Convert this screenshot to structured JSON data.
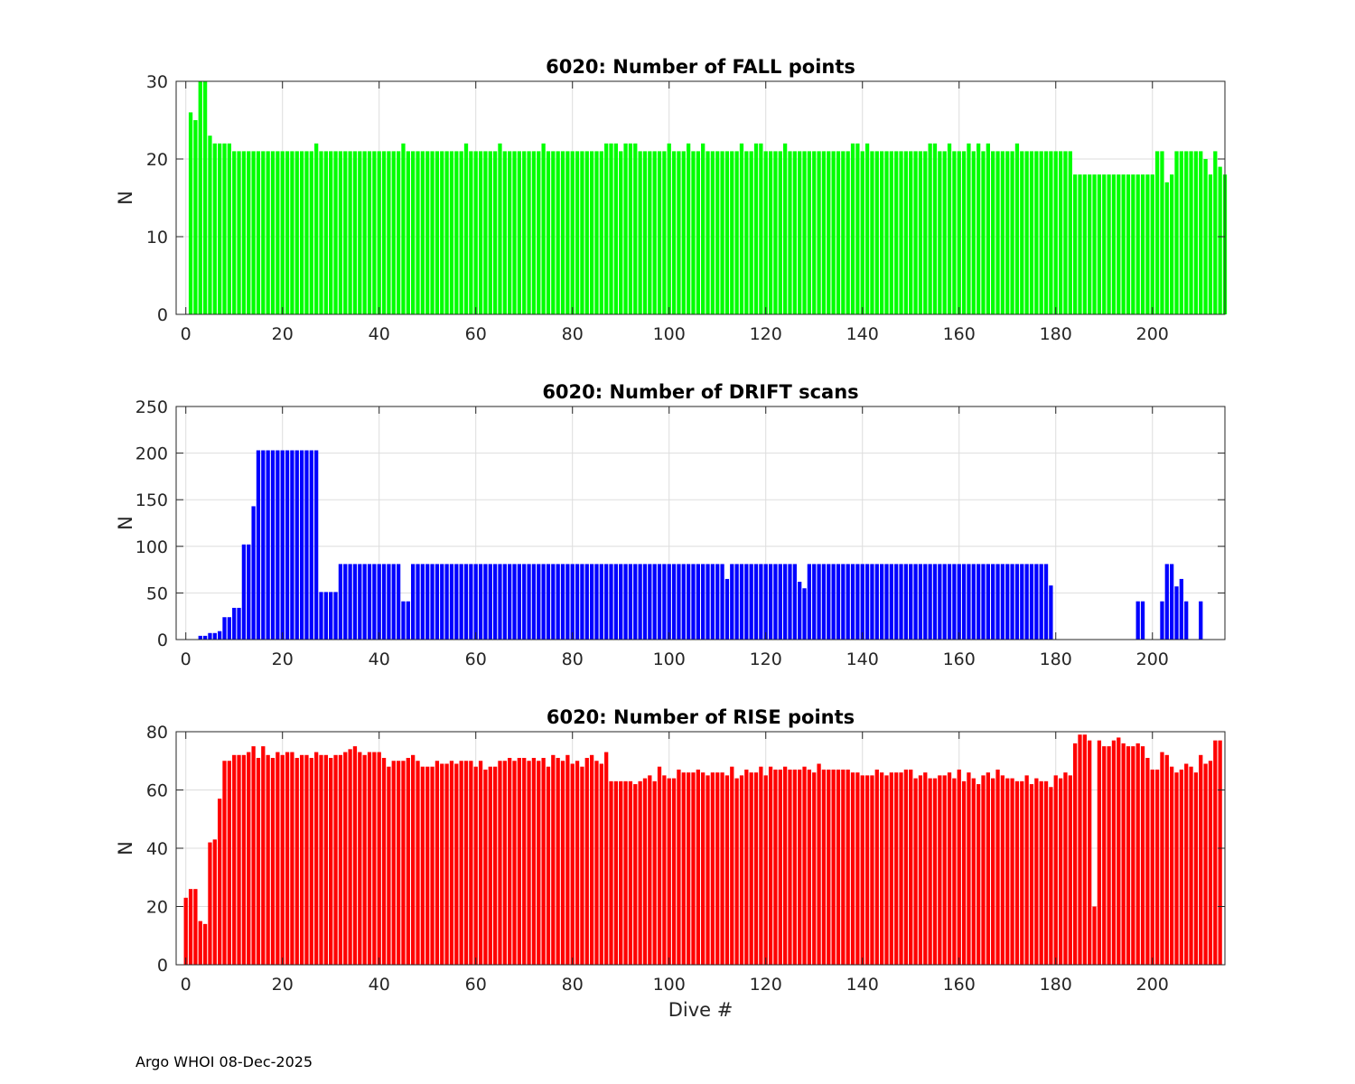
{
  "footer": "Argo WHOI 08-Dec-2025",
  "chart_data": [
    {
      "type": "bar",
      "title": "6020: Number of FALL points",
      "xlabel": "",
      "ylabel": "N",
      "color": "#00ff00",
      "xlim": [
        -2,
        215
      ],
      "ylim": [
        0,
        30
      ],
      "xticks": [
        0,
        20,
        40,
        60,
        80,
        100,
        120,
        140,
        160,
        180,
        200
      ],
      "yticks": [
        0,
        10,
        20,
        30
      ],
      "x_start": 1,
      "values": [
        26,
        25,
        30,
        30,
        23,
        22,
        22,
        22,
        22,
        21,
        21,
        21,
        21,
        21,
        21,
        21,
        21,
        21,
        21,
        21,
        21,
        21,
        21,
        21,
        21,
        21,
        22,
        21,
        21,
        21,
        21,
        21,
        21,
        21,
        21,
        21,
        21,
        21,
        21,
        21,
        21,
        21,
        21,
        21,
        22,
        21,
        21,
        21,
        21,
        21,
        21,
        21,
        21,
        21,
        21,
        21,
        21,
        22,
        21,
        21,
        21,
        21,
        21,
        21,
        22,
        21,
        21,
        21,
        21,
        21,
        21,
        21,
        21,
        22,
        21,
        21,
        21,
        21,
        21,
        21,
        21,
        21,
        21,
        21,
        21,
        21,
        22,
        22,
        22,
        21,
        22,
        22,
        22,
        21,
        21,
        21,
        21,
        21,
        21,
        22,
        21,
        21,
        21,
        22,
        21,
        21,
        22,
        21,
        21,
        21,
        21,
        21,
        21,
        21,
        22,
        21,
        21,
        22,
        22,
        21,
        21,
        21,
        21,
        22,
        21,
        21,
        21,
        21,
        21,
        21,
        21,
        21,
        21,
        21,
        21,
        21,
        21,
        22,
        22,
        21,
        22,
        21,
        21,
        21,
        21,
        21,
        21,
        21,
        21,
        21,
        21,
        21,
        21,
        22,
        22,
        21,
        21,
        22,
        21,
        21,
        21,
        22,
        21,
        22,
        21,
        22,
        21,
        21,
        21,
        21,
        21,
        22,
        21,
        21,
        21,
        21,
        21,
        21,
        21,
        21,
        21,
        21,
        21,
        18,
        18,
        18,
        18,
        18,
        18,
        18,
        18,
        18,
        18,
        18,
        18,
        18,
        18,
        18,
        18,
        18,
        21,
        21,
        17,
        18,
        21,
        21,
        21,
        21,
        21,
        21,
        20,
        18,
        21,
        19,
        18
      ]
    },
    {
      "type": "bar",
      "title": "6020: Number of DRIFT scans",
      "xlabel": "",
      "ylabel": "N",
      "color": "#0000ff",
      "xlim": [
        -2,
        215
      ],
      "ylim": [
        0,
        250
      ],
      "xticks": [
        0,
        20,
        40,
        60,
        80,
        100,
        120,
        140,
        160,
        180,
        200
      ],
      "yticks": [
        0,
        50,
        100,
        150,
        200,
        250
      ],
      "x_start": 1,
      "values": [
        0,
        0,
        4,
        4,
        7,
        7,
        9,
        24,
        24,
        34,
        34,
        102,
        102,
        143,
        203,
        203,
        203,
        203,
        203,
        203,
        203,
        203,
        203,
        203,
        203,
        203,
        203,
        51,
        51,
        51,
        51,
        81,
        81,
        81,
        81,
        81,
        81,
        81,
        81,
        81,
        81,
        81,
        81,
        81,
        41,
        41,
        81,
        81,
        81,
        81,
        81,
        81,
        81,
        81,
        81,
        81,
        81,
        81,
        81,
        81,
        81,
        81,
        81,
        81,
        81,
        81,
        81,
        81,
        81,
        81,
        81,
        81,
        81,
        81,
        81,
        81,
        81,
        81,
        81,
        81,
        81,
        81,
        81,
        81,
        81,
        81,
        81,
        81,
        81,
        81,
        81,
        81,
        81,
        81,
        81,
        81,
        81,
        81,
        81,
        81,
        81,
        81,
        81,
        81,
        81,
        81,
        81,
        81,
        81,
        81,
        81,
        65,
        81,
        81,
        81,
        81,
        81,
        81,
        81,
        81,
        81,
        81,
        81,
        81,
        81,
        81,
        62,
        55,
        81,
        81,
        81,
        81,
        81,
        81,
        81,
        81,
        81,
        81,
        81,
        81,
        81,
        81,
        81,
        81,
        81,
        81,
        81,
        81,
        81,
        81,
        81,
        81,
        81,
        81,
        81,
        81,
        81,
        81,
        81,
        81,
        81,
        81,
        81,
        81,
        81,
        81,
        81,
        81,
        81,
        81,
        81,
        81,
        81,
        81,
        81,
        81,
        81,
        81,
        58,
        0,
        0,
        0,
        0,
        0,
        0,
        0,
        0,
        0,
        0,
        0,
        0,
        0,
        0,
        0,
        0,
        0,
        41,
        41,
        0,
        0,
        0,
        41,
        81,
        81,
        57,
        65,
        41,
        0,
        0,
        41,
        0
      ]
    },
    {
      "type": "bar",
      "title": "6020: Number of RISE points",
      "xlabel": "Dive #",
      "ylabel": "N",
      "color": "#ff0000",
      "xlim": [
        -2,
        215
      ],
      "ylim": [
        0,
        80
      ],
      "xticks": [
        0,
        20,
        40,
        60,
        80,
        100,
        120,
        140,
        160,
        180,
        200
      ],
      "yticks": [
        0,
        20,
        40,
        60,
        80
      ],
      "x_start": 0,
      "values": [
        23,
        26,
        26,
        15,
        14,
        42,
        43,
        57,
        70,
        70,
        72,
        72,
        72,
        73,
        75,
        71,
        75,
        72,
        71,
        73,
        72,
        73,
        73,
        71,
        72,
        72,
        71,
        73,
        72,
        72,
        71,
        72,
        72,
        73,
        74,
        75,
        73,
        72,
        73,
        73,
        73,
        71,
        68,
        70,
        70,
        70,
        71,
        72,
        70,
        68,
        68,
        68,
        70,
        69,
        69,
        70,
        69,
        70,
        70,
        70,
        68,
        70,
        67,
        68,
        68,
        70,
        70,
        71,
        70,
        71,
        71,
        70,
        71,
        70,
        71,
        68,
        72,
        71,
        70,
        72,
        69,
        70,
        68,
        71,
        72,
        70,
        69,
        73,
        63,
        63,
        63,
        63,
        63,
        62,
        63,
        64,
        65,
        63,
        68,
        65,
        64,
        64,
        67,
        66,
        66,
        66,
        67,
        66,
        65,
        66,
        66,
        66,
        65,
        68,
        64,
        65,
        67,
        66,
        66,
        68,
        65,
        68,
        67,
        67,
        68,
        67,
        67,
        67,
        68,
        67,
        66,
        69,
        67,
        67,
        67,
        67,
        67,
        67,
        66,
        66,
        65,
        65,
        65,
        67,
        66,
        65,
        66,
        66,
        66,
        67,
        67,
        64,
        65,
        66,
        64,
        64,
        65,
        65,
        66,
        64,
        67,
        63,
        66,
        64,
        62,
        65,
        66,
        64,
        67,
        65,
        64,
        64,
        63,
        63,
        65,
        62,
        64,
        63,
        63,
        61,
        65,
        64,
        66,
        65,
        76,
        79,
        79,
        77,
        20,
        77,
        75,
        75,
        77,
        78,
        76,
        75,
        75,
        76,
        75,
        71,
        67,
        67,
        73,
        72,
        68,
        66,
        67,
        69,
        68,
        66,
        72,
        69,
        70,
        77,
        77
      ]
    }
  ]
}
